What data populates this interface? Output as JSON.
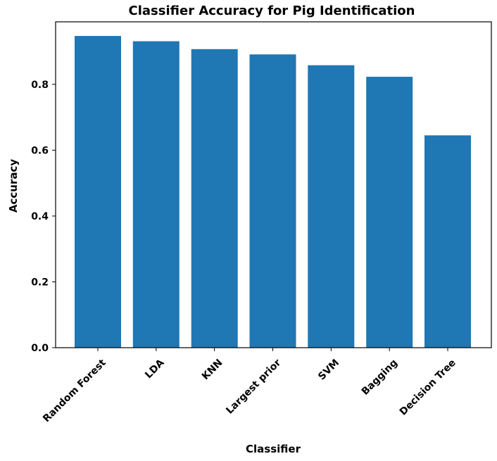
{
  "chart_data": {
    "type": "bar",
    "title": "Classifier Accuracy for Pig Identification",
    "xlabel": "Classifier",
    "ylabel": "Accuracy",
    "categories": [
      "Random Forest",
      "LDA",
      "KNN",
      "Largest prior",
      "SVM",
      "Bagging",
      "Decision Tree"
    ],
    "values": [
      0.947,
      0.931,
      0.907,
      0.891,
      0.858,
      0.823,
      0.645
    ],
    "ylim": [
      0,
      0.99
    ],
    "yticks": [
      0.0,
      0.2,
      0.4,
      0.6,
      0.8
    ],
    "ytick_labels": [
      "0.0",
      "0.2",
      "0.4",
      "0.6",
      "0.8"
    ],
    "bar_color": "#1f77b4",
    "grid": false,
    "legend": "none"
  }
}
